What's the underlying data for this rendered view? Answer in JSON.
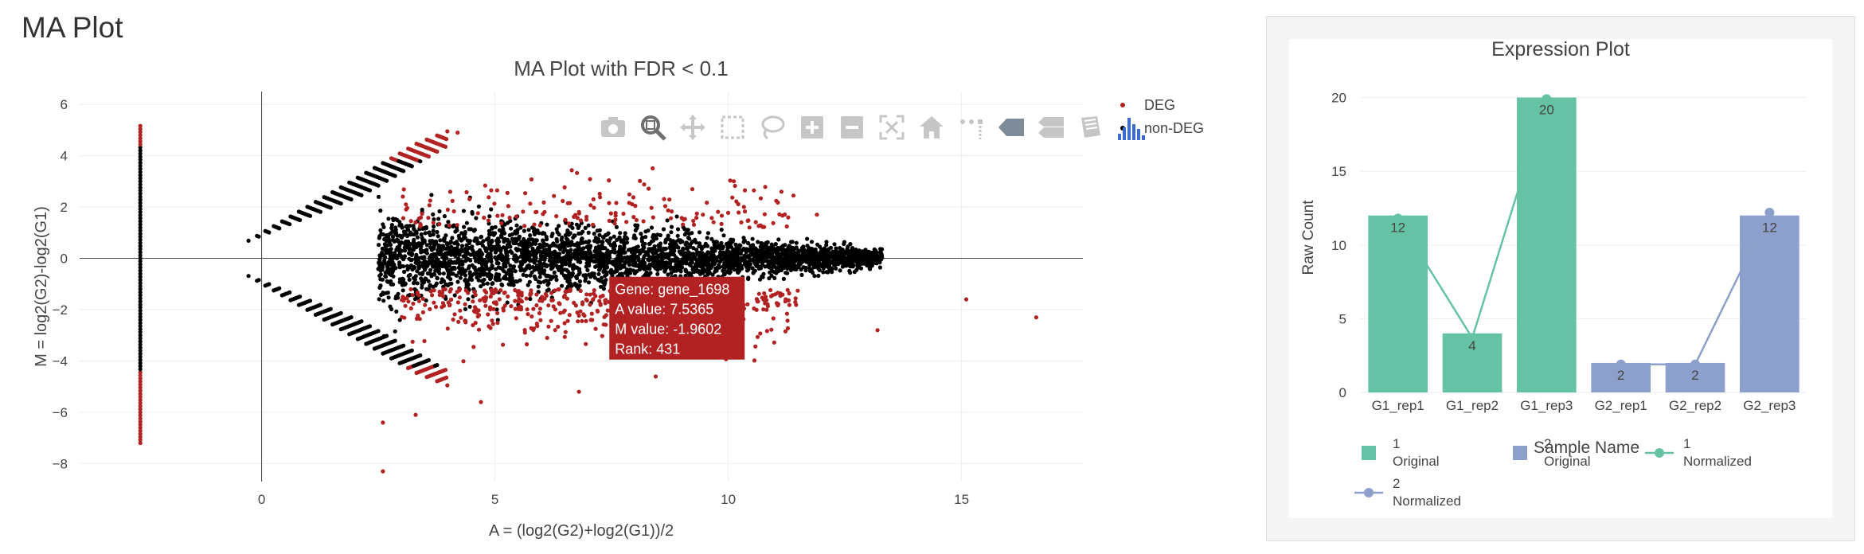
{
  "page": {
    "title": "MA Plot"
  },
  "modebar": {
    "buttons": [
      {
        "name": "camera-icon"
      },
      {
        "name": "zoom-icon"
      },
      {
        "name": "pan-icon"
      },
      {
        "name": "box-select-icon"
      },
      {
        "name": "lasso-select-icon"
      },
      {
        "name": "zoom-in-icon"
      },
      {
        "name": "zoom-out-icon"
      },
      {
        "name": "autoscale-icon"
      },
      {
        "name": "reset-axes-icon"
      },
      {
        "name": "toggle-spike-lines-icon"
      },
      {
        "name": "hover-closest-icon"
      },
      {
        "name": "hover-compare-icon"
      },
      {
        "name": "edit-chart-icon"
      },
      {
        "name": "plotly-logo-icon"
      }
    ]
  },
  "chart_data": [
    {
      "type": "scatter",
      "title": "MA Plot with FDR < 0.1",
      "xlabel": "A = (log2(G2)+log2(G1))/2",
      "ylabel": "M = log2(G2)-log2(G1)",
      "xlim": [
        -3.9,
        17.6
      ],
      "ylim": [
        -8.7,
        6.5
      ],
      "xticks": [
        0,
        5,
        10,
        15
      ],
      "yticks": [
        -8,
        -6,
        -4,
        -2,
        0,
        2,
        4,
        6
      ],
      "grid": true,
      "legend_position": "top-right",
      "series": [
        {
          "name": "DEG",
          "color": "#b22222"
        },
        {
          "name": "non-DEG",
          "color": "#000000"
        }
      ],
      "tooltip": {
        "lines": [
          "Gene: gene_1698",
          "A value: 7.5365",
          "M value: -1.9602",
          "Rank: 431"
        ],
        "x": 7.5365,
        "y": -1.9602,
        "color": "#b22222"
      }
    },
    {
      "type": "bar",
      "title": "Expression Plot",
      "ylabel": "Raw Count",
      "categories": [
        "G1_rep1",
        "G1_rep2",
        "G1_rep3",
        "G2_rep1",
        "G2_rep2",
        "G2_rep3"
      ],
      "ylim": [
        0,
        21
      ],
      "yticks": [
        0,
        5,
        10,
        15,
        20
      ],
      "bars": {
        "values": [
          12,
          4,
          20,
          2,
          2,
          12
        ],
        "groups": [
          "1",
          "1",
          "1",
          "2",
          "2",
          "2"
        ],
        "colors": {
          "1": "#66c2a5",
          "2": "#8da0cb"
        }
      },
      "lines": [
        {
          "name": "1 Normalized",
          "x": [
            "G1_rep1",
            "G1_rep2",
            "G1_rep3"
          ],
          "values": [
            11.8,
            3.7,
            19.9
          ],
          "color": "#66c2a5"
        },
        {
          "name": "2 Normalized",
          "x": [
            "G2_rep1",
            "G2_rep2",
            "G2_rep3"
          ],
          "values": [
            1.9,
            1.9,
            12.2
          ],
          "color": "#8da0cb"
        }
      ],
      "legend": {
        "title": "Sample Name",
        "items": [
          {
            "label_top": "1",
            "label_bottom": "Original",
            "kind": "bar",
            "color": "#66c2a5"
          },
          {
            "label_top": "2",
            "label_bottom": "Original",
            "kind": "bar",
            "color": "#8da0cb"
          },
          {
            "label_top": "1",
            "label_bottom": "Normalized",
            "kind": "line",
            "color": "#66c2a5"
          },
          {
            "label_top": "2",
            "label_bottom": "Normalized",
            "kind": "line",
            "color": "#8da0cb"
          }
        ]
      }
    }
  ]
}
